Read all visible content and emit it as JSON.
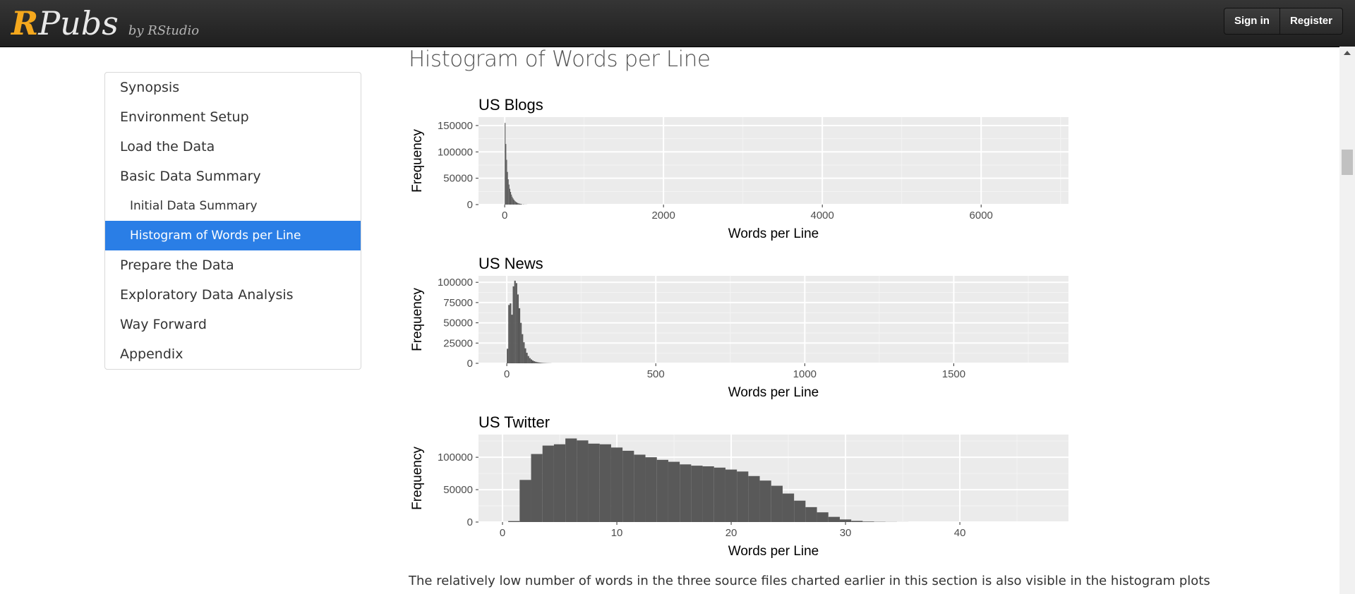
{
  "header": {
    "logo_r": "R",
    "logo_pubs": "Pubs",
    "logo_by": "by RStudio",
    "sign_in": "Sign in",
    "register": "Register"
  },
  "toc": {
    "items": [
      {
        "label": "Synopsis",
        "level": 1,
        "active": false
      },
      {
        "label": "Environment Setup",
        "level": 1,
        "active": false
      },
      {
        "label": "Load the Data",
        "level": 1,
        "active": false
      },
      {
        "label": "Basic Data Summary",
        "level": 1,
        "active": false
      },
      {
        "label": "Initial Data Summary",
        "level": 2,
        "active": false
      },
      {
        "label": "Histogram of Words per Line",
        "level": 2,
        "active": true
      },
      {
        "label": "Prepare the Data",
        "level": 1,
        "active": false
      },
      {
        "label": "Exploratory Data Analysis",
        "level": 1,
        "active": false
      },
      {
        "label": "Way Forward",
        "level": 1,
        "active": false
      },
      {
        "label": "Appendix",
        "level": 1,
        "active": false
      }
    ],
    "active_color": "#2a7ee6"
  },
  "main": {
    "title": "Histogram of Words per Line",
    "body_text": "The relatively low number of words in the three source files charted earlier in this section is also visible in the histogram plots"
  },
  "chart_data": [
    {
      "type": "bar",
      "title": "US Blogs",
      "xlabel": "Words per Line",
      "ylabel": "Frequency",
      "xlim": [
        -330,
        7100
      ],
      "ylim": [
        0,
        166000
      ],
      "xticks": [
        0,
        2000,
        4000,
        6000
      ],
      "xtick_labels": [
        "0",
        "2000",
        "4000",
        "6000"
      ],
      "yticks": [
        0,
        50000,
        100000,
        150000
      ],
      "ytick_labels": [
        "0",
        "50000",
        "100000",
        "150000"
      ],
      "bin_width": 10,
      "x": [
        5,
        15,
        25,
        35,
        45,
        55,
        65,
        75,
        85,
        95,
        105,
        115,
        125,
        135,
        145,
        155,
        165,
        175,
        185,
        195,
        205,
        215,
        235,
        255,
        275
      ],
      "values": [
        155000,
        115000,
        85000,
        62000,
        48000,
        38000,
        30000,
        24000,
        19000,
        15000,
        12000,
        9500,
        7500,
        6000,
        4800,
        3800,
        3000,
        2400,
        1900,
        1500,
        1200,
        900,
        600,
        400,
        250
      ],
      "bar_color": "#595959",
      "panel_color": "#ebebeb",
      "grid": true
    },
    {
      "type": "bar",
      "title": "US News",
      "xlabel": "Words per Line",
      "ylabel": "Frequency",
      "xlim": [
        -95,
        1885
      ],
      "ylim": [
        0,
        108000
      ],
      "xticks": [
        0,
        500,
        1000,
        1500
      ],
      "xtick_labels": [
        "0",
        "500",
        "1000",
        "1500"
      ],
      "yticks": [
        0,
        25000,
        50000,
        75000,
        100000
      ],
      "ytick_labels": [
        "0",
        "25000",
        "50000",
        "75000",
        "100000"
      ],
      "bin_width": 5,
      "x": [
        2.5,
        7.5,
        12.5,
        17.5,
        22.5,
        27.5,
        32.5,
        37.5,
        42.5,
        47.5,
        52.5,
        57.5,
        62.5,
        67.5,
        72.5,
        77.5,
        82.5,
        87.5,
        92.5,
        97.5,
        102.5,
        107.5,
        112.5,
        117.5,
        122.5,
        127.5,
        132.5,
        137.5,
        142.5,
        147.5
      ],
      "values": [
        18000,
        72000,
        74000,
        60000,
        95000,
        102000,
        99000,
        85000,
        68000,
        50000,
        36000,
        26000,
        18500,
        13000,
        9000,
        6500,
        4800,
        3500,
        2600,
        1900,
        1400,
        1050,
        800,
        600,
        450,
        350,
        270,
        200,
        150,
        110
      ],
      "bar_color": "#595959",
      "panel_color": "#ebebeb",
      "grid": true
    },
    {
      "type": "bar",
      "title": "US Twitter",
      "xlabel": "Words per Line",
      "ylabel": "Frequency",
      "xlim": [
        -2.1,
        49.5
      ],
      "ylim": [
        0,
        135000
      ],
      "xticks": [
        0,
        10,
        20,
        30,
        40
      ],
      "xtick_labels": [
        "0",
        "10",
        "20",
        "30",
        "40"
      ],
      "yticks": [
        0,
        50000,
        100000
      ],
      "ytick_labels": [
        "0",
        "50000",
        "100000"
      ],
      "bin_width": 1,
      "x": [
        1,
        2,
        3,
        4,
        5,
        6,
        7,
        8,
        9,
        10,
        11,
        12,
        13,
        14,
        15,
        16,
        17,
        18,
        19,
        20,
        21,
        22,
        23,
        24,
        25,
        26,
        27,
        28,
        29,
        30,
        31,
        32,
        33,
        34,
        35
      ],
      "values": [
        1500,
        65000,
        105000,
        118000,
        120000,
        129000,
        126000,
        121000,
        120000,
        115000,
        110000,
        104000,
        100000,
        96000,
        93000,
        89000,
        87000,
        86000,
        84000,
        81000,
        78000,
        71000,
        64000,
        56000,
        44000,
        33000,
        23000,
        15000,
        8000,
        4000,
        1800,
        800,
        400,
        200,
        80
      ],
      "bar_color": "#595959",
      "panel_color": "#ebebeb",
      "grid": true
    }
  ]
}
